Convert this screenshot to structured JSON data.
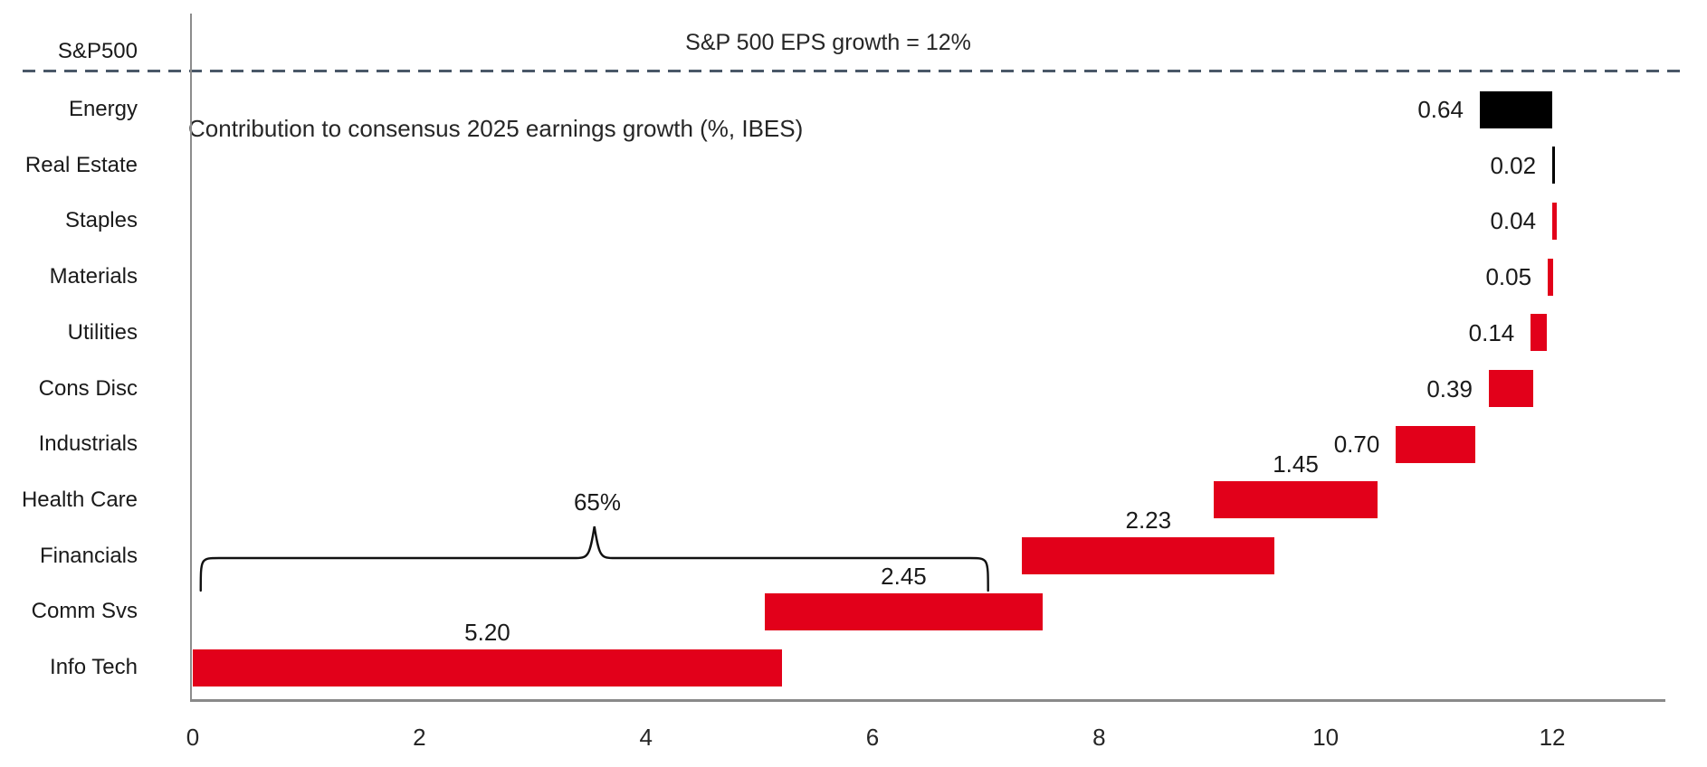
{
  "chart_data": {
    "type": "bar",
    "variant": "horizontal-waterfall",
    "title": "Contribution to consensus 2025 earnings growth (%, IBES)",
    "annotation": "S&P 500 EPS growth = 12%",
    "total_row_label": "S&P500",
    "total_value_pct": 12,
    "xlabel": "",
    "ylabel": "",
    "x_ticks": [
      0,
      2,
      4,
      6,
      8,
      10,
      12
    ],
    "x_axis_range": [
      0,
      13
    ],
    "grid": false,
    "legend": "none",
    "colors": {
      "positive_bar": "#e2001a",
      "negative_bar": "#000000",
      "dashed_line": "#4a5868",
      "axis": "#8c8c8c",
      "text": "#1a1a1a"
    },
    "bracket": {
      "label": "65%",
      "from_x": 0.07,
      "to_x": 7.02
    },
    "rows": [
      {
        "label": "Energy",
        "value": "0.64",
        "start": 11.36,
        "end": 12.0,
        "negative": true,
        "value_pos": "left"
      },
      {
        "label": "Real Estate",
        "value": "0.02",
        "start": 12.0,
        "end": 12.02,
        "negative": true,
        "value_pos": "left"
      },
      {
        "label": "Staples",
        "value": "0.04",
        "start": 12.0,
        "end": 12.04,
        "negative": false,
        "value_pos": "left"
      },
      {
        "label": "Materials",
        "value": "0.05",
        "start": 11.96,
        "end": 12.01,
        "negative": false,
        "value_pos": "left"
      },
      {
        "label": "Utilities",
        "value": "0.14",
        "start": 11.81,
        "end": 11.95,
        "negative": false,
        "value_pos": "left"
      },
      {
        "label": "Cons Disc",
        "value": "0.39",
        "start": 11.44,
        "end": 11.83,
        "negative": false,
        "value_pos": "left"
      },
      {
        "label": "Industrials",
        "value": "0.70",
        "start": 10.62,
        "end": 11.32,
        "negative": false,
        "value_pos": "left"
      },
      {
        "label": "Health Care",
        "value": "1.45",
        "start": 9.01,
        "end": 10.46,
        "negative": false,
        "value_pos": "above"
      },
      {
        "label": "Financials",
        "value": "2.23",
        "start": 7.32,
        "end": 9.55,
        "negative": false,
        "value_pos": "above"
      },
      {
        "label": "Comm Svs",
        "value": "2.45",
        "start": 5.05,
        "end": 7.5,
        "negative": false,
        "value_pos": "above"
      },
      {
        "label": "Info Tech",
        "value": "5.20",
        "start": 0.0,
        "end": 5.2,
        "negative": false,
        "value_pos": "above"
      }
    ]
  }
}
